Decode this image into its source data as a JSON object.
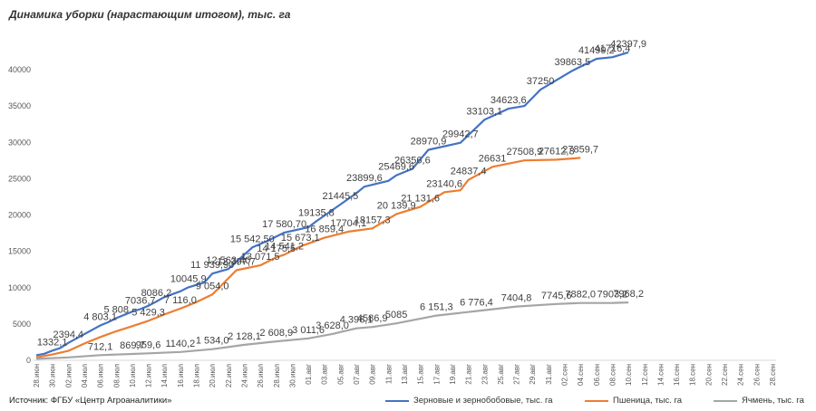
{
  "chart_data": {
    "type": "line",
    "title": "Динамика уборки (нарастающим итогом), тыс. га",
    "source": "Источник: ФГБУ «Центр Агроаналитики»",
    "ylim": [
      0,
      45000
    ],
    "y_ticks": [
      "0",
      "5000",
      "10000",
      "15000",
      "20000",
      "25000",
      "30000",
      "35000",
      "40000"
    ],
    "grid": false,
    "legend_position": "bottom",
    "categories": [
      "28.июн",
      "30.июн",
      "02.июл",
      "04.июл",
      "06.июл",
      "08.июл",
      "10.июл",
      "12.июл",
      "14.июл",
      "16.июл",
      "18.июл",
      "20.июл",
      "22.июл",
      "24.июл",
      "26.июл",
      "28.июл",
      "30.июл",
      "01.авг",
      "03.авг",
      "05.авг",
      "07.авг",
      "09.авг",
      "11.авг",
      "13.авг",
      "15.авг",
      "17.авг",
      "19.авг",
      "21.авг",
      "23.авг",
      "25.авг",
      "27.авг",
      "29.авг",
      "31.авг",
      "02.сен",
      "04.сен",
      "06.сен",
      "08.сен",
      "10.сен",
      "12.сен",
      "14.сен",
      "16.сен",
      "18.сен",
      "20.сен",
      "22.сен",
      "24.сен",
      "26.сен",
      "28.сен"
    ],
    "series": [
      {
        "name": "Зерновые и зернобобовые, тыс. га",
        "color": "#4472C4",
        "points": [
          {
            "x": "28.июн",
            "y": 700
          },
          {
            "x": "29.июн",
            "y": 900
          },
          {
            "x": "30.июн",
            "y": 1332.1,
            "label": "1332,1"
          },
          {
            "x": "01.июл",
            "y": 1700
          },
          {
            "x": "02.июл",
            "y": 2394.4,
            "label": "2394,4"
          },
          {
            "x": "03.июл",
            "y": 3000
          },
          {
            "x": "04.июл",
            "y": 3600
          },
          {
            "x": "05.июл",
            "y": 4200
          },
          {
            "x": "06.июл",
            "y": 4803.1,
            "label": "4 803,1"
          },
          {
            "x": "07.июл",
            "y": 5250
          },
          {
            "x": "08.июл",
            "y": 5808,
            "label": "5 808"
          },
          {
            "x": "10.июл",
            "y": 6700
          },
          {
            "x": "11.июл",
            "y": 7036.7,
            "label": "7036,7"
          },
          {
            "x": "12.июл",
            "y": 7500
          },
          {
            "x": "13.июл",
            "y": 8086.2,
            "label": "8086,2"
          },
          {
            "x": "14.июл",
            "y": 8700
          },
          {
            "x": "16.июл",
            "y": 9500
          },
          {
            "x": "17.июл",
            "y": 10045.9,
            "label": "10045,9"
          },
          {
            "x": "19.июл",
            "y": 10700
          },
          {
            "x": "20.июл",
            "y": 11939.9,
            "label": "11 939,90"
          },
          {
            "x": "22.июл",
            "y": 12563.4,
            "label": "12 563,40"
          },
          {
            "x": "25.июл",
            "y": 15542.5,
            "label": "15 542,50"
          },
          {
            "x": "27.июл",
            "y": 16500
          },
          {
            "x": "29.июл",
            "y": 17580.7,
            "label": "17 580,70"
          },
          {
            "x": "01.авг",
            "y": 18300
          },
          {
            "x": "02.авг",
            "y": 19135.8,
            "label": "19135,8"
          },
          {
            "x": "05.авг",
            "y": 21445.5,
            "label": "21445,5"
          },
          {
            "x": "07.авг",
            "y": 23000
          },
          {
            "x": "08.авг",
            "y": 23899.6,
            "label": "23899,6"
          },
          {
            "x": "11.авг",
            "y": 24700
          },
          {
            "x": "12.авг",
            "y": 25469.6,
            "label": "25469,6"
          },
          {
            "x": "14.авг",
            "y": 26356.6,
            "label": "26356,6"
          },
          {
            "x": "16.авг",
            "y": 28970.9,
            "label": "28970,9"
          },
          {
            "x": "20.авг",
            "y": 29942.7,
            "label": "29942,7"
          },
          {
            "x": "23.авг",
            "y": 33103.1,
            "label": "33103,1"
          },
          {
            "x": "26.авг",
            "y": 34623.6,
            "label": "34623,6"
          },
          {
            "x": "28.авг",
            "y": 35000
          },
          {
            "x": "30.авг",
            "y": 37250,
            "label": "37250"
          },
          {
            "x": "03.сен",
            "y": 39863.5,
            "label": "39863,5"
          },
          {
            "x": "06.сен",
            "y": 41499.2,
            "label": "41499,2"
          },
          {
            "x": "08.сен",
            "y": 41716.4,
            "label": "41716,4"
          },
          {
            "x": "10.сен",
            "y": 42397.9,
            "label": "42397,9"
          }
        ]
      },
      {
        "name": "Пшеница, тыс. га",
        "color": "#ED7D31",
        "points": [
          {
            "x": "28.июн",
            "y": 400
          },
          {
            "x": "30.июн",
            "y": 800
          },
          {
            "x": "02.июл",
            "y": 1300
          },
          {
            "x": "04.июл",
            "y": 2300
          },
          {
            "x": "06.июл",
            "y": 3200
          },
          {
            "x": "08.июл",
            "y": 4000
          },
          {
            "x": "10.июл",
            "y": 4700
          },
          {
            "x": "12.июл",
            "y": 5429.3,
            "label": "5 429,3"
          },
          {
            "x": "14.июл",
            "y": 6300
          },
          {
            "x": "16.июл",
            "y": 7116,
            "label": "7 116,0"
          },
          {
            "x": "18.июл",
            "y": 8000
          },
          {
            "x": "20.июл",
            "y": 9054,
            "label": "9 054,0"
          },
          {
            "x": "23.июл",
            "y": 12397.7,
            "label": "12 397,7"
          },
          {
            "x": "26.июл",
            "y": 13071.5,
            "label": "13 071,5"
          },
          {
            "x": "28.июл",
            "y": 14175.5,
            "label": "14 175,5"
          },
          {
            "x": "29.июл",
            "y": 14541.2,
            "label": "14 541,2"
          },
          {
            "x": "31.июл",
            "y": 15673.1,
            "label": "15 673,1"
          },
          {
            "x": "03.авг",
            "y": 16859.4,
            "label": "16 859,4"
          },
          {
            "x": "06.авг",
            "y": 17704.1,
            "label": "17704,1"
          },
          {
            "x": "09.авг",
            "y": 18157.3,
            "label": "18157,3"
          },
          {
            "x": "12.авг",
            "y": 20139.9,
            "label": "20 139,9"
          },
          {
            "x": "15.авг",
            "y": 21131.6,
            "label": "21 131,6"
          },
          {
            "x": "18.авг",
            "y": 23140.6,
            "label": "23140,6"
          },
          {
            "x": "20.авг",
            "y": 23400
          },
          {
            "x": "21.авг",
            "y": 24837.4,
            "label": "24837,4"
          },
          {
            "x": "24.авг",
            "y": 26631,
            "label": "26631"
          },
          {
            "x": "28.авг",
            "y": 27508.9,
            "label": "27508,9"
          },
          {
            "x": "01.сен",
            "y": 27612.3,
            "label": "27612,3"
          },
          {
            "x": "04.сен",
            "y": 27859.7,
            "label": "27859,7"
          }
        ]
      },
      {
        "name": "Ячмень, тыс. га",
        "color": "#A5A5A5",
        "points": [
          {
            "x": "28.июн",
            "y": 200
          },
          {
            "x": "02.июл",
            "y": 400
          },
          {
            "x": "06.июл",
            "y": 712.1,
            "label": "712,1"
          },
          {
            "x": "10.июл",
            "y": 869.7,
            "label": "869,7"
          },
          {
            "x": "12.июл",
            "y": 959.6,
            "label": "959,6"
          },
          {
            "x": "16.июл",
            "y": 1140.2,
            "label": "1140,2"
          },
          {
            "x": "20.июл",
            "y": 1534,
            "label": "1 534,0"
          },
          {
            "x": "24.июл",
            "y": 2128.1,
            "label": "2 128,1"
          },
          {
            "x": "28.июл",
            "y": 2608.9,
            "label": "2 608,9"
          },
          {
            "x": "01.авг",
            "y": 3011.6,
            "label": "3 011,6"
          },
          {
            "x": "04.авг",
            "y": 3628,
            "label": "3 628,0"
          },
          {
            "x": "07.авг",
            "y": 4396.1,
            "label": "4 396,1"
          },
          {
            "x": "09.авг",
            "y": 4586.9,
            "label": "4586,9"
          },
          {
            "x": "12.авг",
            "y": 5085,
            "label": "5085"
          },
          {
            "x": "17.авг",
            "y": 6151.3,
            "label": "6 151,3"
          },
          {
            "x": "22.авг",
            "y": 6776.4,
            "label": "6 776,4"
          },
          {
            "x": "27.авг",
            "y": 7404.8,
            "label": "7404,8"
          },
          {
            "x": "01.сен",
            "y": 7745.6,
            "label": "7745,6"
          },
          {
            "x": "04.сен",
            "y": 7882,
            "label": "7882,0"
          },
          {
            "x": "08.сен",
            "y": 7903.2,
            "label": "7903,2"
          },
          {
            "x": "10.сен",
            "y": 7968.2,
            "label": "7968,2"
          }
        ]
      }
    ]
  }
}
